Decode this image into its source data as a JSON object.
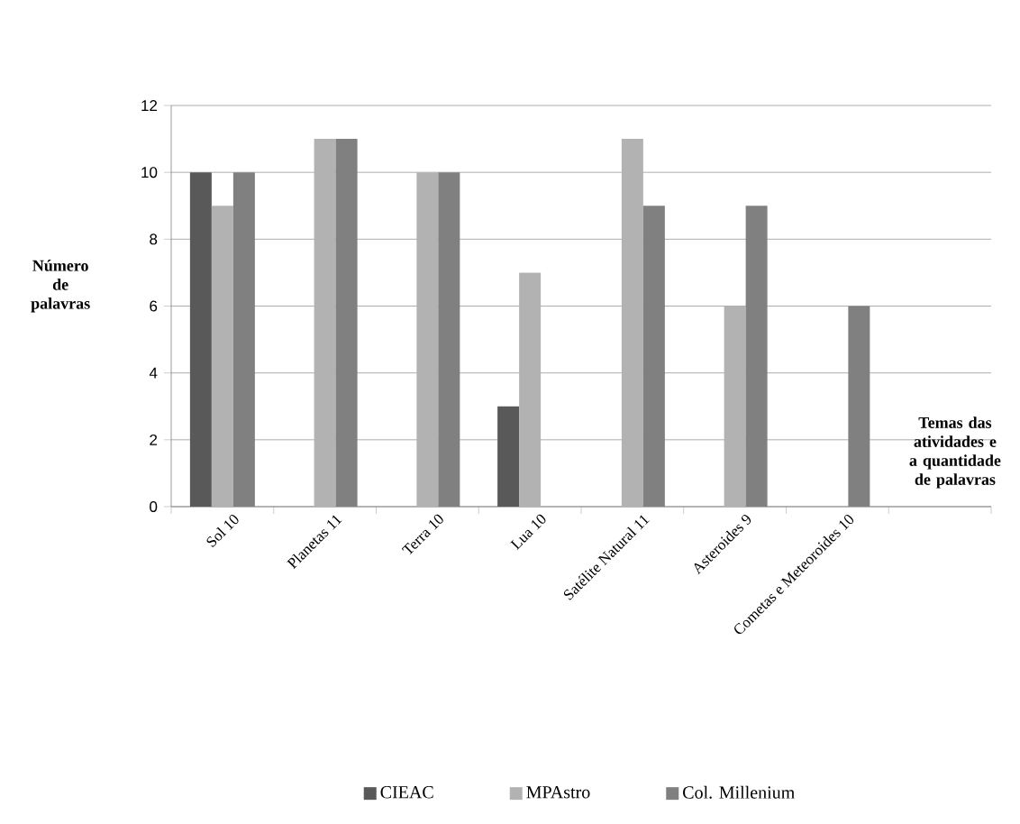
{
  "chart_data": {
    "type": "bar",
    "categories": [
      "Sol 10",
      "Planetas 11",
      "Terra 10",
      "Lua 10",
      "Satélite Natural 11",
      "Asteroides 9",
      "Cometas e Meteoroides 10",
      null
    ],
    "series": [
      {
        "name": "CIEAC",
        "color": "#595959",
        "values": [
          10,
          null,
          null,
          3,
          null,
          null,
          null,
          null
        ]
      },
      {
        "name": "MPAstro",
        "color": "#b2b2b2",
        "values": [
          9,
          11,
          10,
          7,
          11,
          6,
          null,
          null
        ]
      },
      {
        "name": "Col. Millenium",
        "color": "#808080",
        "values": [
          10,
          11,
          10,
          null,
          9,
          9,
          6,
          null
        ]
      }
    ],
    "xlabel": "Temas das atividades e a quantidade de palavras",
    "ylabel": "Número de palavras",
    "ylim": [
      0,
      12
    ],
    "yticks": [
      0,
      2,
      4,
      6,
      8,
      10,
      12
    ],
    "grid": "y",
    "legend": "bottom"
  }
}
